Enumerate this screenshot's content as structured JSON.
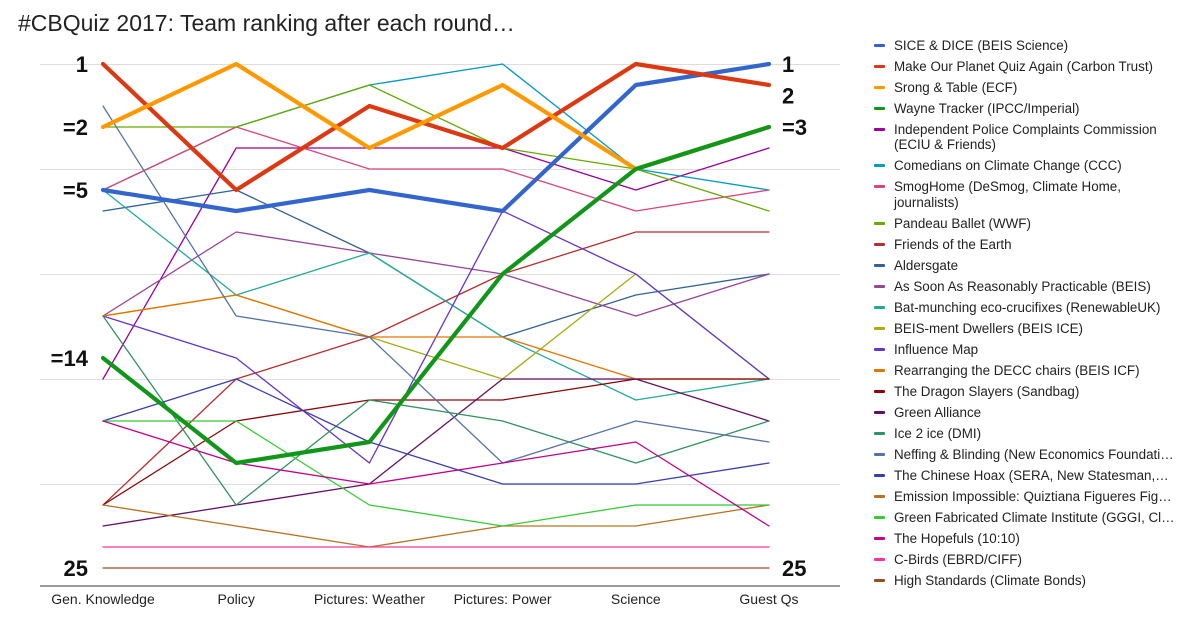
{
  "title": "#CBQuiz 2017: Team ranking after each round…",
  "chart_data": {
    "type": "line",
    "title": "#CBQuiz 2017: Team ranking after each round…",
    "xlabel": "",
    "ylabel": "",
    "categories": [
      "Gen. Knowledge",
      "Policy",
      "Pictures: Weather",
      "Pictures: Power",
      "Science",
      "Guest Qs"
    ],
    "y_axis": {
      "inverted": true,
      "ylim": [
        1,
        25
      ]
    },
    "grid": true,
    "legend_position": "right",
    "left_rank_labels": [
      {
        "rank": 1,
        "text": "1"
      },
      {
        "rank": 4,
        "text": "=2"
      },
      {
        "rank": 7,
        "text": "=5"
      },
      {
        "rank": 15,
        "text": "=14"
      },
      {
        "rank": 25,
        "text": "25"
      }
    ],
    "right_rank_labels": [
      {
        "rank": 1,
        "text": "1"
      },
      {
        "rank": 2.5,
        "text": "2"
      },
      {
        "rank": 4,
        "text": "=3"
      },
      {
        "rank": 25,
        "text": "25"
      }
    ],
    "series": [
      {
        "name": "SICE & DICE (BEIS Science)",
        "color": "#3366cc",
        "bold": true,
        "values": [
          7,
          8,
          7,
          8,
          2,
          1
        ]
      },
      {
        "name": "Make Our Planet Quiz Again (Carbon Trust)",
        "color": "#dc3912",
        "bold": true,
        "values": [
          1,
          7,
          3,
          5,
          1,
          2
        ]
      },
      {
        "name": "Srong & Table (ECF)",
        "color": "#ff9900",
        "bold": true,
        "values": [
          4,
          1,
          5,
          2,
          6,
          4
        ]
      },
      {
        "name": "Wayne Tracker (IPCC/Imperial)",
        "color": "#109618",
        "bold": true,
        "values": [
          15,
          20,
          19,
          11,
          6,
          4
        ]
      },
      {
        "name": "Independent Police Complaints Commission (ECIU & Friends)",
        "color": "#990099",
        "values": [
          16,
          5,
          5,
          5,
          7,
          5
        ]
      },
      {
        "name": "Comedians on Climate Change (CCC)",
        "color": "#0099c6",
        "values": [
          7,
          4,
          2,
          1,
          6,
          7
        ]
      },
      {
        "name": "SmogHome (DeSmog, Climate Home, journalists)",
        "color": "#dd4477",
        "values": [
          7,
          4,
          6,
          6,
          8,
          7
        ]
      },
      {
        "name": "Pandeau Ballet (WWF)",
        "color": "#66aa00",
        "values": [
          4,
          4,
          2,
          5,
          6,
          8
        ]
      },
      {
        "name": "Friends of the Earth",
        "color": "#b82e2e",
        "values": [
          22,
          16,
          14,
          11,
          9,
          9
        ]
      },
      {
        "name": "Aldersgate",
        "color": "#316395",
        "values": [
          8,
          7,
          10,
          14,
          12,
          11
        ]
      },
      {
        "name": "As Soon As Reasonably Practicable (BEIS)",
        "color": "#994499",
        "values": [
          13,
          9,
          10,
          11,
          13,
          11
        ]
      },
      {
        "name": "Bat-munching eco-crucifixes (RenewableUK)",
        "color": "#22aa99",
        "values": [
          7,
          12,
          10,
          14,
          17,
          16
        ]
      },
      {
        "name": "BEIS-ment Dwellers (BEIS ICE)",
        "color": "#aaaa11",
        "values": [
          13,
          12,
          14,
          16,
          11,
          16
        ]
      },
      {
        "name": "Influence Map",
        "color": "#6633cc",
        "values": [
          13,
          15,
          20,
          8,
          11,
          16
        ]
      },
      {
        "name": "Rearranging the DECC chairs (BEIS ICF)",
        "color": "#e67300",
        "values": [
          13,
          12,
          14,
          14,
          16,
          16
        ]
      },
      {
        "name": "The Dragon Slayers (Sandbag)",
        "color": "#8b0707",
        "values": [
          22,
          18,
          17,
          17,
          16,
          16
        ]
      },
      {
        "name": "Green Alliance",
        "color": "#651067",
        "values": [
          23,
          22,
          21,
          16,
          16,
          18
        ]
      },
      {
        "name": "Ice 2 ice (DMI)",
        "color": "#329262",
        "values": [
          13,
          22,
          17,
          18,
          20,
          18
        ]
      },
      {
        "name": "Neffing & Blinding (New Economics Foundati…",
        "color": "#5574a6",
        "values": [
          3,
          13,
          14,
          20,
          18,
          19
        ]
      },
      {
        "name": "The Chinese Hoax (SERA, New Statesman,…",
        "color": "#3b3eac",
        "values": [
          18,
          16,
          19,
          21,
          21,
          20
        ]
      },
      {
        "name": "Emission Impossible: Quiztiana Figueres Fig…",
        "color": "#b77322",
        "values": [
          22,
          23,
          24,
          23,
          23,
          22
        ]
      },
      {
        "name": "Green Fabricated Climate Institute (GGGI, Cl…",
        "color": "#33cc33",
        "values": [
          18,
          18,
          22,
          23,
          22,
          22
        ]
      },
      {
        "name": "The Hopefuls (10:10)",
        "color": "#c00090",
        "values": [
          18,
          20,
          21,
          20,
          19,
          23
        ]
      },
      {
        "name": "C-Birds (EBRD/CIFF)",
        "color": "#ff3399",
        "values": [
          24,
          24,
          24,
          24,
          24,
          24
        ]
      },
      {
        "name": "High Standards (Climate Bonds)",
        "color": "#994c26",
        "values": [
          25,
          25,
          25,
          25,
          25,
          25
        ]
      }
    ]
  }
}
